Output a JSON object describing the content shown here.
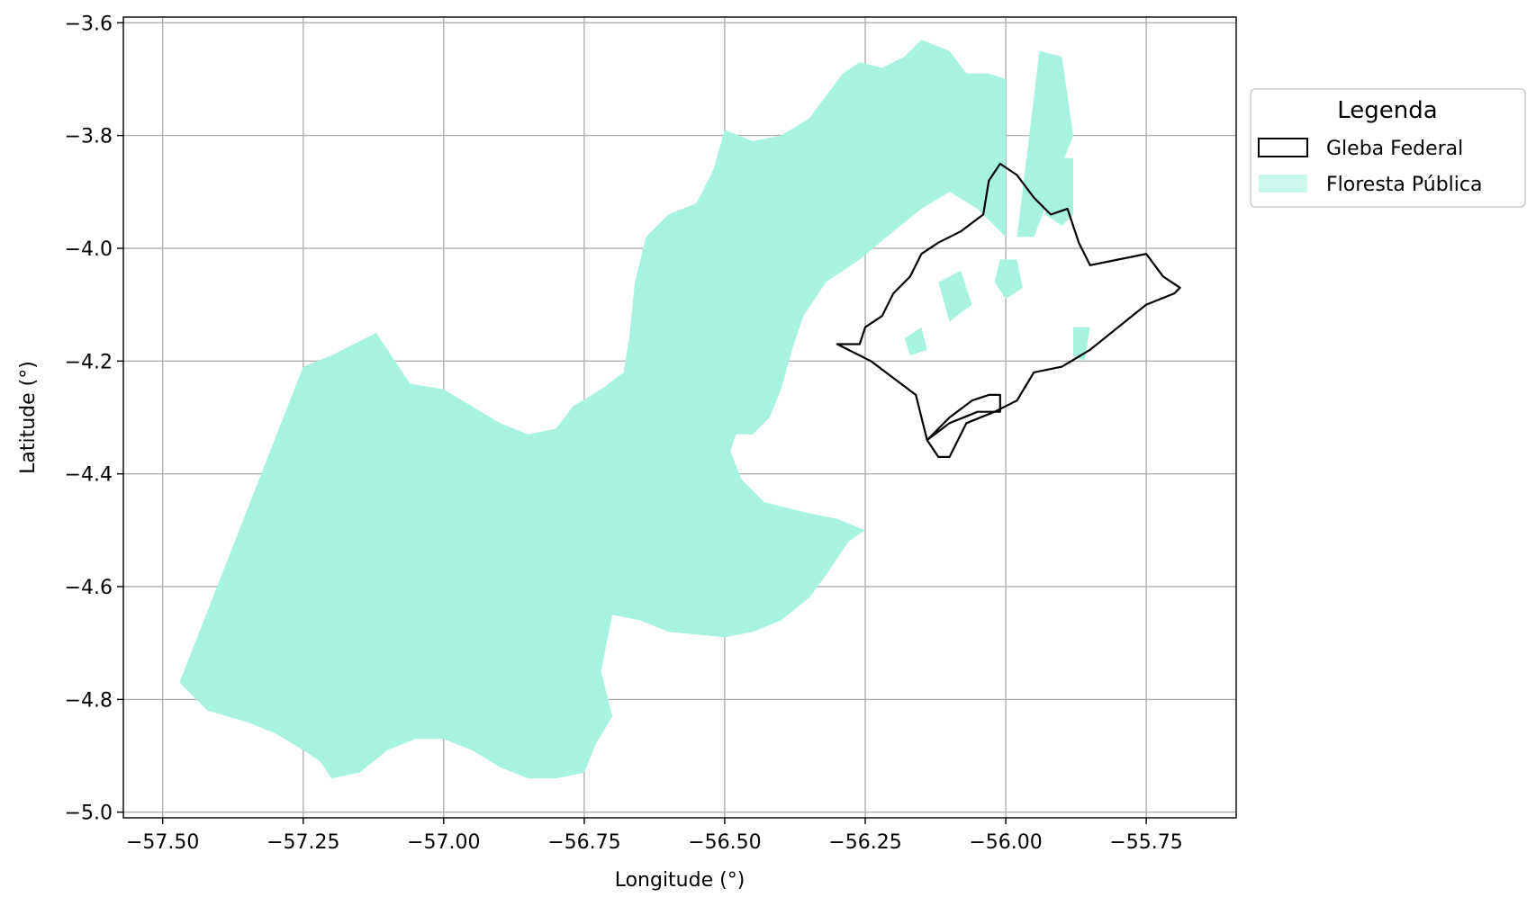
{
  "chart_data": {
    "type": "map",
    "xlabel": "Longitude (°)",
    "ylabel": "Latitude (°)",
    "xlim": [
      -57.57,
      -55.59
    ],
    "ylim": [
      -5.01,
      -3.59
    ],
    "x_ticks": [
      -57.5,
      -57.25,
      -57.0,
      -56.75,
      -56.5,
      -56.25,
      -56.0,
      -55.75
    ],
    "x_tick_labels": [
      "−57.50",
      "−57.25",
      "−57.00",
      "−56.75",
      "−56.50",
      "−56.25",
      "−56.00",
      "−55.75"
    ],
    "y_ticks": [
      -3.6,
      -3.8,
      -4.0,
      -4.2,
      -4.4,
      -4.6,
      -4.8,
      -5.0
    ],
    "y_tick_labels": [
      "−3.6",
      "−3.8",
      "−4.0",
      "−4.2",
      "−4.4",
      "−4.6",
      "−4.8",
      "−5.0"
    ],
    "grid": true,
    "legend": {
      "title": "Legenda",
      "placement": "outside-right",
      "entries": [
        {
          "label": "Gleba Federal",
          "style": "outline",
          "color": "#000000"
        },
        {
          "label": "Floresta Pública",
          "style": "fill",
          "color": "#a7f3df"
        }
      ]
    },
    "layers": [
      {
        "name": "Floresta Pública",
        "color": "#a7f3df",
        "polygons": [
          [
            [
              -57.25,
              -4.21
            ],
            [
              -57.2,
              -4.19
            ],
            [
              -57.16,
              -4.17
            ],
            [
              -57.12,
              -4.15
            ],
            [
              -57.1,
              -4.18
            ],
            [
              -57.06,
              -4.24
            ],
            [
              -57.0,
              -4.25
            ],
            [
              -56.95,
              -4.28
            ],
            [
              -56.9,
              -4.31
            ],
            [
              -56.85,
              -4.33
            ],
            [
              -56.8,
              -4.32
            ],
            [
              -56.77,
              -4.28
            ],
            [
              -56.72,
              -4.25
            ],
            [
              -56.68,
              -4.22
            ],
            [
              -56.67,
              -4.16
            ],
            [
              -56.66,
              -4.06
            ],
            [
              -56.64,
              -3.98
            ],
            [
              -56.6,
              -3.94
            ],
            [
              -56.55,
              -3.92
            ],
            [
              -56.52,
              -3.86
            ],
            [
              -56.5,
              -3.79
            ],
            [
              -56.45,
              -3.81
            ],
            [
              -56.4,
              -3.8
            ],
            [
              -56.35,
              -3.77
            ],
            [
              -56.32,
              -3.73
            ],
            [
              -56.29,
              -3.69
            ],
            [
              -56.26,
              -3.67
            ],
            [
              -56.22,
              -3.68
            ],
            [
              -56.18,
              -3.66
            ],
            [
              -56.15,
              -3.63
            ],
            [
              -56.1,
              -3.65
            ],
            [
              -56.07,
              -3.69
            ],
            [
              -56.03,
              -3.69
            ],
            [
              -56.0,
              -3.7
            ],
            [
              -56.0,
              -3.98
            ],
            [
              -56.05,
              -3.93
            ],
            [
              -56.1,
              -3.9
            ],
            [
              -56.15,
              -3.93
            ],
            [
              -56.2,
              -3.97
            ],
            [
              -56.26,
              -4.02
            ],
            [
              -56.32,
              -4.06
            ],
            [
              -56.36,
              -4.12
            ],
            [
              -56.38,
              -4.18
            ],
            [
              -56.4,
              -4.25
            ],
            [
              -56.42,
              -4.3
            ],
            [
              -56.45,
              -4.33
            ],
            [
              -56.48,
              -4.33
            ],
            [
              -56.49,
              -4.36
            ],
            [
              -56.47,
              -4.41
            ],
            [
              -56.43,
              -4.45
            ],
            [
              -56.35,
              -4.47
            ],
            [
              -56.3,
              -4.48
            ],
            [
              -56.25,
              -4.5
            ],
            [
              -56.28,
              -4.52
            ],
            [
              -56.3,
              -4.55
            ],
            [
              -56.32,
              -4.58
            ],
            [
              -56.35,
              -4.62
            ],
            [
              -56.4,
              -4.66
            ],
            [
              -56.45,
              -4.68
            ],
            [
              -56.5,
              -4.69
            ],
            [
              -56.6,
              -4.68
            ],
            [
              -56.65,
              -4.66
            ],
            [
              -56.7,
              -4.65
            ],
            [
              -56.72,
              -4.75
            ],
            [
              -56.7,
              -4.83
            ],
            [
              -56.73,
              -4.88
            ],
            [
              -56.75,
              -4.93
            ],
            [
              -56.8,
              -4.94
            ],
            [
              -56.85,
              -4.94
            ],
            [
              -56.9,
              -4.92
            ],
            [
              -56.95,
              -4.89
            ],
            [
              -57.0,
              -4.87
            ],
            [
              -57.05,
              -4.87
            ],
            [
              -57.1,
              -4.89
            ],
            [
              -57.15,
              -4.93
            ],
            [
              -57.2,
              -4.94
            ],
            [
              -57.22,
              -4.91
            ],
            [
              -57.25,
              -4.89
            ],
            [
              -57.3,
              -4.86
            ],
            [
              -57.35,
              -4.84
            ],
            [
              -57.42,
              -4.82
            ],
            [
              -57.47,
              -4.77
            ]
          ],
          [
            [
              -55.94,
              -3.65
            ],
            [
              -55.9,
              -3.66
            ],
            [
              -55.88,
              -3.8
            ],
            [
              -55.95,
              -3.98
            ],
            [
              -55.98,
              -3.98
            ]
          ],
          [
            [
              -55.92,
              -3.84
            ],
            [
              -55.88,
              -3.84
            ],
            [
              -55.88,
              -3.94
            ],
            [
              -55.9,
              -3.96
            ],
            [
              -55.93,
              -3.94
            ]
          ],
          [
            [
              -56.01,
              -4.02
            ],
            [
              -55.98,
              -4.02
            ],
            [
              -55.97,
              -4.07
            ],
            [
              -56.0,
              -4.09
            ],
            [
              -56.02,
              -4.06
            ]
          ],
          [
            [
              -56.12,
              -4.06
            ],
            [
              -56.08,
              -4.04
            ],
            [
              -56.06,
              -4.1
            ],
            [
              -56.1,
              -4.13
            ]
          ],
          [
            [
              -56.18,
              -4.16
            ],
            [
              -56.15,
              -4.14
            ],
            [
              -56.14,
              -4.18
            ],
            [
              -56.17,
              -4.19
            ]
          ],
          [
            [
              -55.88,
              -4.14
            ],
            [
              -55.85,
              -4.14
            ],
            [
              -55.86,
              -4.2
            ],
            [
              -55.88,
              -4.19
            ]
          ]
        ]
      },
      {
        "name": "Gleba Federal",
        "color": "#000000",
        "polygons": [
          [
            [
              -56.3,
              -4.17
            ],
            [
              -56.26,
              -4.17
            ],
            [
              -56.25,
              -4.14
            ],
            [
              -56.22,
              -4.12
            ],
            [
              -56.2,
              -4.08
            ],
            [
              -56.17,
              -4.05
            ],
            [
              -56.15,
              -4.01
            ],
            [
              -56.12,
              -3.99
            ],
            [
              -56.08,
              -3.97
            ],
            [
              -56.04,
              -3.94
            ],
            [
              -56.03,
              -3.88
            ],
            [
              -56.01,
              -3.85
            ],
            [
              -55.98,
              -3.87
            ],
            [
              -55.95,
              -3.91
            ],
            [
              -55.92,
              -3.94
            ],
            [
              -55.89,
              -3.93
            ],
            [
              -55.87,
              -3.99
            ],
            [
              -55.85,
              -4.03
            ],
            [
              -55.8,
              -4.02
            ],
            [
              -55.75,
              -4.01
            ],
            [
              -55.72,
              -4.05
            ],
            [
              -55.69,
              -4.07
            ],
            [
              -55.7,
              -4.08
            ],
            [
              -55.75,
              -4.1
            ],
            [
              -55.8,
              -4.14
            ],
            [
              -55.85,
              -4.18
            ],
            [
              -55.9,
              -4.21
            ],
            [
              -55.95,
              -4.22
            ],
            [
              -55.98,
              -4.27
            ],
            [
              -56.02,
              -4.29
            ],
            [
              -56.07,
              -4.31
            ],
            [
              -56.1,
              -4.37
            ],
            [
              -56.12,
              -4.37
            ],
            [
              -56.14,
              -4.34
            ],
            [
              -56.1,
              -4.3
            ],
            [
              -56.06,
              -4.27
            ],
            [
              -56.03,
              -4.26
            ],
            [
              -56.01,
              -4.26
            ],
            [
              -56.01,
              -4.29
            ],
            [
              -56.05,
              -4.29
            ],
            [
              -56.1,
              -4.31
            ],
            [
              -56.14,
              -4.34
            ],
            [
              -56.16,
              -4.26
            ],
            [
              -56.2,
              -4.23
            ],
            [
              -56.24,
              -4.2
            ]
          ]
        ]
      }
    ]
  }
}
